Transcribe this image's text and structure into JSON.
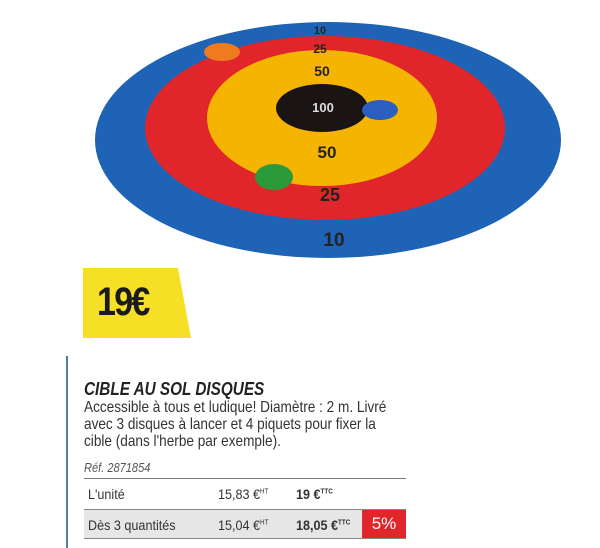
{
  "target": {
    "scores": [
      "10",
      "25",
      "50",
      "100",
      "50",
      "25",
      "10"
    ],
    "colors": {
      "outer": "#1e63b5",
      "ring2": "#e0262b",
      "ring3": "#f5b400",
      "center": "#1a1414"
    }
  },
  "price_badge": "19€",
  "product": {
    "title": "CIBLE AU SOL DISQUES",
    "description": "Accessible à tous et ludique! Diamètre : 2 m. Livré avec 3 disques à lancer et 4 piquets pour fixer la cible (dans l'herbe par exemple).",
    "ref": "Réf. 2871854"
  },
  "pricing": [
    {
      "label": "L'unité",
      "ht": "15,83 €",
      "ht_unit": "HT",
      "ttc": "19 €",
      "ttc_unit": "TTC"
    },
    {
      "label": "Dès 3 quantités",
      "ht": "15,04 €",
      "ht_unit": "HT",
      "ttc": "18,05 €",
      "ttc_unit": "TTC",
      "discount": "5%"
    }
  ]
}
